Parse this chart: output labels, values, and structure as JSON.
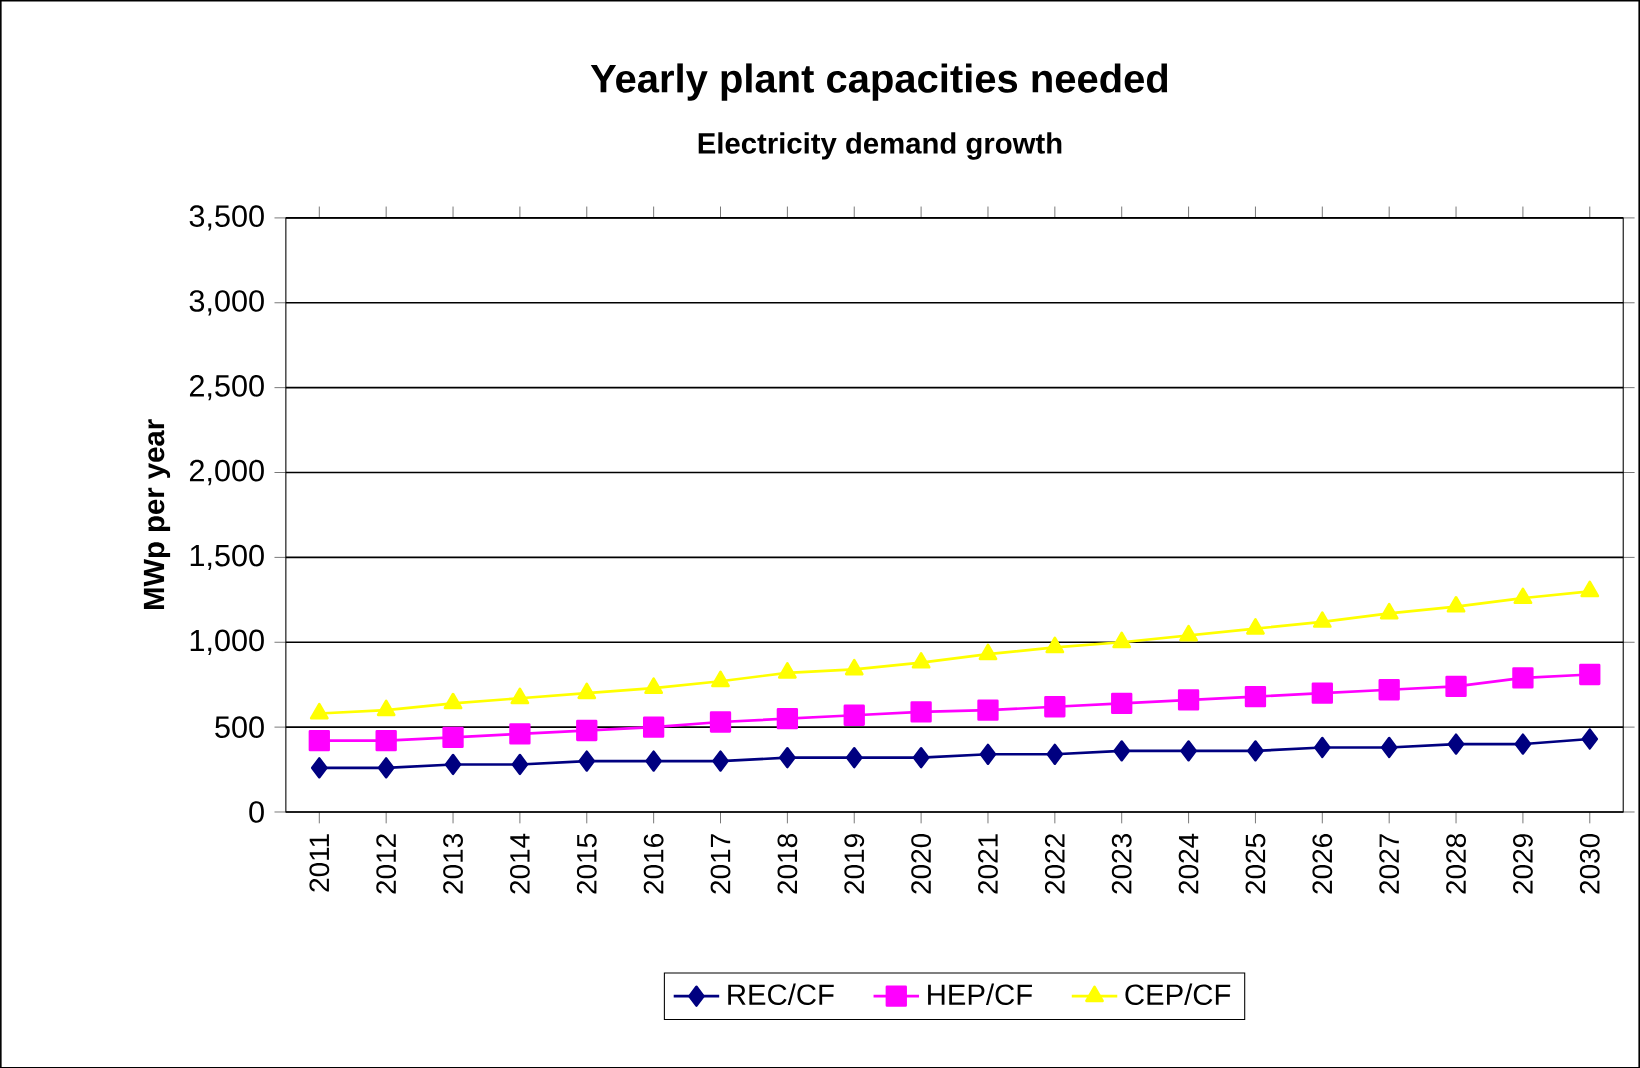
{
  "chart_data": {
    "type": "line",
    "title": "Yearly plant capacities needed",
    "subtitle": "Electricity demand growth",
    "ylabel": "MWp per year",
    "categories": [
      "2011",
      "2012",
      "2013",
      "2014",
      "2015",
      "2016",
      "2017",
      "2018",
      "2019",
      "2020",
      "2021",
      "2022",
      "2023",
      "2024",
      "2025",
      "2026",
      "2027",
      "2028",
      "2029",
      "2030"
    ],
    "series": [
      {
        "name": "REC/CF",
        "color": "#000080",
        "marker": "diamond",
        "values": [
          260,
          260,
          280,
          280,
          300,
          300,
          300,
          320,
          320,
          320,
          340,
          340,
          360,
          360,
          360,
          380,
          380,
          400,
          400,
          430
        ]
      },
      {
        "name": "HEP/CF",
        "color": "#ff00ff",
        "marker": "square",
        "values": [
          420,
          420,
          440,
          460,
          480,
          500,
          530,
          550,
          570,
          590,
          600,
          620,
          640,
          660,
          680,
          700,
          720,
          740,
          790,
          810
        ]
      },
      {
        "name": "CEP/CF",
        "color": "#ffff00",
        "marker": "triangle",
        "values": [
          580,
          600,
          640,
          670,
          700,
          730,
          770,
          820,
          840,
          880,
          930,
          970,
          1000,
          1040,
          1080,
          1120,
          1170,
          1210,
          1260,
          1300
        ]
      }
    ],
    "ylim": [
      0,
      3500
    ],
    "yticks": [
      {
        "value": 0,
        "label": "0"
      },
      {
        "value": 500,
        "label": "500"
      },
      {
        "value": 1000,
        "label": "1,000"
      },
      {
        "value": 1500,
        "label": "1,500"
      },
      {
        "value": 2000,
        "label": "2,000"
      },
      {
        "value": 2500,
        "label": "2,500"
      },
      {
        "value": 3000,
        "label": "3,000"
      },
      {
        "value": 3500,
        "label": "3,500"
      }
    ],
    "grid": "y",
    "legend": "bottom"
  }
}
